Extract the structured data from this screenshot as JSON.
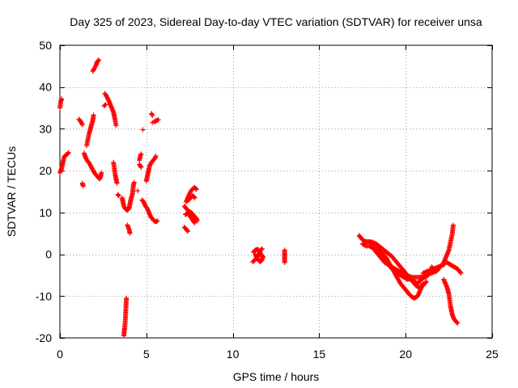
{
  "chart_data": {
    "type": "scatter",
    "title": "Day 325 of 2023, Sidereal Day-to-day VTEC variation (SDTVAR) for receiver unsa",
    "xlabel": "GPS time / hours",
    "ylabel": "SDTVAR / TECUs",
    "xlim": [
      0,
      25
    ],
    "ylim": [
      -20,
      50
    ],
    "xticks": [
      0,
      5,
      10,
      15,
      20,
      25
    ],
    "yticks": [
      -20,
      -10,
      0,
      10,
      20,
      30,
      40,
      50
    ],
    "grid": true,
    "marker": "+",
    "marker_color": "#ff0000",
    "series": [
      {
        "name": "SDTVAR",
        "segments": [
          [
            [
              0.0,
              35.0
            ],
            [
              0.05,
              36.5
            ],
            [
              0.1,
              37.2
            ]
          ],
          [
            [
              0.0,
              19.5
            ],
            [
              0.1,
              20.5
            ],
            [
              0.15,
              21.5
            ],
            [
              0.2,
              22.5
            ],
            [
              0.25,
              23.3
            ],
            [
              0.35,
              23.8
            ],
            [
              0.45,
              24.0
            ],
            [
              0.5,
              24.3
            ]
          ],
          [
            [
              1.1,
              32.3
            ],
            [
              1.2,
              31.8
            ],
            [
              1.3,
              31.0
            ]
          ],
          [
            [
              1.3,
              17.0
            ],
            [
              1.35,
              16.3
            ]
          ],
          [
            [
              1.4,
              24.2
            ],
            [
              1.5,
              23.0
            ],
            [
              1.6,
              22.3
            ],
            [
              1.7,
              21.8
            ],
            [
              1.8,
              21.0
            ],
            [
              1.9,
              20.2
            ],
            [
              2.0,
              19.5
            ],
            [
              2.1,
              18.9
            ],
            [
              2.2,
              18.5
            ],
            [
              2.3,
              18.0
            ],
            [
              2.35,
              18.5
            ],
            [
              2.4,
              19.5
            ]
          ],
          [
            [
              1.55,
              26.0
            ],
            [
              1.62,
              27.5
            ],
            [
              1.7,
              29.0
            ],
            [
              1.8,
              30.5
            ],
            [
              1.9,
              32.0
            ],
            [
              1.95,
              33.3
            ]
          ],
          [
            [
              1.9,
              43.8
            ],
            [
              2.0,
              44.5
            ],
            [
              2.1,
              45.3
            ],
            [
              2.15,
              46.0
            ],
            [
              2.25,
              46.5
            ]
          ],
          [
            [
              2.6,
              38.5
            ],
            [
              2.7,
              37.8
            ],
            [
              2.8,
              37.0
            ],
            [
              2.9,
              36.0
            ],
            [
              3.0,
              35.0
            ],
            [
              3.1,
              34.0
            ],
            [
              3.15,
              33.0
            ],
            [
              3.2,
              32.0
            ],
            [
              3.25,
              30.8
            ]
          ],
          [
            [
              2.55,
              35.5
            ],
            [
              2.65,
              35.8
            ]
          ],
          [
            [
              3.1,
              22.0
            ],
            [
              3.15,
              20.5
            ],
            [
              3.2,
              19.0
            ],
            [
              3.25,
              18.0
            ],
            [
              3.3,
              17.0
            ]
          ],
          [
            [
              3.35,
              14.3
            ],
            [
              3.4,
              14.0
            ]
          ],
          [
            [
              3.6,
              13.5
            ],
            [
              3.65,
              12.5
            ],
            [
              3.7,
              11.5
            ],
            [
              3.8,
              10.8
            ],
            [
              3.9,
              10.5
            ],
            [
              4.0,
              11.0
            ],
            [
              4.05,
              12.0
            ],
            [
              4.1,
              13.0
            ],
            [
              4.2,
              14.5
            ],
            [
              4.25,
              16.5
            ],
            [
              4.3,
              17.2
            ]
          ],
          [
            [
              3.9,
              7.0
            ],
            [
              4.0,
              6.0
            ],
            [
              4.05,
              5.0
            ]
          ],
          [
            [
              3.85,
              -10.5
            ],
            [
              3.82,
              -12.5
            ],
            [
              3.8,
              -14.5
            ],
            [
              3.78,
              -16.0
            ],
            [
              3.75,
              -17.5
            ],
            [
              3.72,
              -18.5
            ],
            [
              3.7,
              -19.5
            ]
          ],
          [
            [
              4.5,
              15.2
            ]
          ],
          [
            [
              4.6,
              22.5
            ],
            [
              4.65,
              23.5
            ],
            [
              4.7,
              24.0
            ]
          ],
          [
            [
              4.6,
              21.5
            ],
            [
              4.7,
              20.8
            ]
          ],
          [
            [
              4.8,
              29.8
            ]
          ],
          [
            [
              4.75,
              13.0
            ],
            [
              4.85,
              12.5
            ],
            [
              4.95,
              11.5
            ],
            [
              5.05,
              11.0
            ],
            [
              5.15,
              10.0
            ],
            [
              5.25,
              9.0
            ],
            [
              5.35,
              8.5
            ],
            [
              5.45,
              8.0
            ],
            [
              5.55,
              7.8
            ],
            [
              5.65,
              8.0
            ]
          ],
          [
            [
              5.0,
              17.5
            ],
            [
              5.05,
              18.5
            ],
            [
              5.1,
              19.5
            ],
            [
              5.15,
              20.5
            ],
            [
              5.2,
              21.3
            ],
            [
              5.3,
              22.0
            ],
            [
              5.4,
              22.5
            ],
            [
              5.5,
              23.0
            ],
            [
              5.55,
              23.5
            ]
          ],
          [
            [
              5.3,
              33.7
            ],
            [
              5.35,
              33.2
            ]
          ],
          [
            [
              5.45,
              31.7
            ],
            [
              5.6,
              32.0
            ],
            [
              5.7,
              32.2
            ]
          ],
          [
            [
              5.35,
              31.5
            ]
          ],
          [
            [
              7.2,
              6.5
            ],
            [
              7.3,
              6.0
            ],
            [
              7.4,
              5.5
            ]
          ],
          [
            [
              7.2,
              11.5
            ],
            [
              7.3,
              11.0
            ],
            [
              7.4,
              10.5
            ],
            [
              7.5,
              10.2
            ],
            [
              7.6,
              10.0
            ],
            [
              7.7,
              9.5
            ],
            [
              7.8,
              9.0
            ],
            [
              7.9,
              8.5
            ],
            [
              7.95,
              8.0
            ]
          ],
          [
            [
              7.25,
              9.5
            ],
            [
              7.4,
              9.8
            ],
            [
              7.55,
              9.0
            ],
            [
              7.7,
              8.0
            ],
            [
              7.8,
              7.5
            ]
          ],
          [
            [
              7.3,
              12.5
            ],
            [
              7.4,
              13.5
            ],
            [
              7.5,
              14.5
            ],
            [
              7.6,
              15.3
            ],
            [
              7.7,
              15.7
            ],
            [
              7.8,
              16.0
            ],
            [
              7.9,
              15.5
            ]
          ],
          [
            [
              7.4,
              12.8
            ],
            [
              7.55,
              13.5
            ],
            [
              7.7,
              14.0
            ],
            [
              7.8,
              13.5
            ]
          ],
          [
            [
              11.15,
              -1.8
            ],
            [
              11.25,
              -1.5
            ],
            [
              11.35,
              -1.0
            ],
            [
              11.45,
              -0.5
            ],
            [
              11.5,
              0.0
            ],
            [
              11.55,
              0.5
            ],
            [
              11.6,
              1.0
            ],
            [
              11.7,
              1.3
            ]
          ],
          [
            [
              11.3,
              0.0
            ],
            [
              11.4,
              -1.0
            ],
            [
              11.5,
              -1.5
            ],
            [
              11.6,
              -1.8
            ],
            [
              11.7,
              -1.2
            ],
            [
              11.75,
              -0.5
            ]
          ],
          [
            [
              11.2,
              0.5
            ],
            [
              11.3,
              1.0
            ],
            [
              11.45,
              1.2
            ],
            [
              11.6,
              0.3
            ],
            [
              11.7,
              -0.5
            ]
          ],
          [
            [
              13.0,
              -2.0
            ],
            [
              13.0,
              -1.0
            ],
            [
              13.0,
              0.0
            ],
            [
              13.0,
              1.0
            ]
          ],
          [
            [
              17.3,
              4.5
            ],
            [
              17.4,
              4.0
            ],
            [
              17.5,
              3.5
            ],
            [
              17.6,
              3.2
            ],
            [
              17.7,
              3.0
            ],
            [
              17.8,
              3.0
            ],
            [
              17.9,
              3.0
            ],
            [
              18.0,
              2.8
            ],
            [
              18.1,
              2.5
            ],
            [
              18.2,
              2.5
            ],
            [
              18.3,
              2.0
            ],
            [
              18.5,
              1.0
            ],
            [
              18.7,
              0.0
            ],
            [
              18.9,
              -1.0
            ],
            [
              19.1,
              -2.5
            ],
            [
              19.3,
              -4.0
            ],
            [
              19.5,
              -5.5
            ],
            [
              19.7,
              -7.0
            ],
            [
              19.9,
              -8.0
            ],
            [
              20.1,
              -9.0
            ],
            [
              20.3,
              -10.0
            ],
            [
              20.5,
              -10.5
            ],
            [
              20.7,
              -10.0
            ],
            [
              20.85,
              -8.5
            ],
            [
              21.0,
              -7.0
            ]
          ],
          [
            [
              17.5,
              2.5
            ],
            [
              17.7,
              2.0
            ],
            [
              17.9,
              2.0
            ],
            [
              18.1,
              1.5
            ],
            [
              18.3,
              1.0
            ],
            [
              18.5,
              0.0
            ],
            [
              18.7,
              -1.0
            ],
            [
              18.9,
              -2.0
            ],
            [
              19.1,
              -3.0
            ],
            [
              19.3,
              -3.8
            ],
            [
              19.5,
              -4.5
            ],
            [
              19.7,
              -5.0
            ],
            [
              19.9,
              -5.5
            ],
            [
              20.1,
              -6.0
            ],
            [
              20.3,
              -6.0
            ],
            [
              20.5,
              -6.5
            ],
            [
              20.7,
              -7.0
            ],
            [
              20.9,
              -6.0
            ],
            [
              21.1,
              -5.5
            ],
            [
              21.3,
              -5.0
            ]
          ],
          [
            [
              18.0,
              3.0
            ],
            [
              18.3,
              2.5
            ],
            [
              18.6,
              1.5
            ],
            [
              18.9,
              0.5
            ],
            [
              19.2,
              -0.5
            ],
            [
              19.5,
              -2.0
            ],
            [
              19.8,
              -3.5
            ],
            [
              20.1,
              -5.0
            ],
            [
              20.4,
              -6.5
            ],
            [
              20.6,
              -7.5
            ],
            [
              20.8,
              -8.0
            ],
            [
              21.0,
              -7.5
            ],
            [
              21.2,
              -6.5
            ]
          ],
          [
            [
              18.2,
              1.0
            ],
            [
              18.5,
              -0.5
            ],
            [
              18.8,
              -2.0
            ],
            [
              19.2,
              -3.0
            ],
            [
              19.6,
              -4.0
            ],
            [
              20.0,
              -5.0
            ],
            [
              20.4,
              -5.5
            ],
            [
              20.8,
              -5.5
            ],
            [
              21.2,
              -5.0
            ],
            [
              21.5,
              -4.5
            ],
            [
              21.8,
              -4.0
            ]
          ],
          [
            [
              21.5,
              -3.0
            ],
            [
              21.6,
              -3.5
            ]
          ],
          [
            [
              21.8,
              -4.0
            ],
            [
              21.9,
              -3.5
            ],
            [
              22.0,
              -3.0
            ],
            [
              22.1,
              -2.5
            ],
            [
              22.2,
              -2.0
            ],
            [
              22.3,
              -1.0
            ],
            [
              22.4,
              0.0
            ],
            [
              22.5,
              1.0
            ],
            [
              22.6,
              3.0
            ],
            [
              22.7,
              5.0
            ],
            [
              22.75,
              7.0
            ]
          ],
          [
            [
              22.2,
              -6.0
            ],
            [
              22.3,
              -7.0
            ],
            [
              22.4,
              -8.0
            ],
            [
              22.5,
              -9.5
            ],
            [
              22.55,
              -11.0
            ],
            [
              22.6,
              -12.5
            ],
            [
              22.65,
              -13.5
            ],
            [
              22.7,
              -14.5
            ],
            [
              22.8,
              -15.5
            ],
            [
              22.9,
              -16.0
            ],
            [
              23.0,
              -16.5
            ]
          ],
          [
            [
              22.4,
              -2.0
            ],
            [
              22.6,
              -2.5
            ],
            [
              22.8,
              -3.0
            ],
            [
              23.0,
              -3.5
            ],
            [
              23.2,
              -4.5
            ]
          ],
          [
            [
              21.0,
              -4.5
            ],
            [
              21.3,
              -4.0
            ],
            [
              21.6,
              -3.5
            ],
            [
              21.9,
              -3.0
            ],
            [
              22.2,
              -2.5
            ],
            [
              22.3,
              -2.0
            ]
          ]
        ]
      }
    ]
  }
}
